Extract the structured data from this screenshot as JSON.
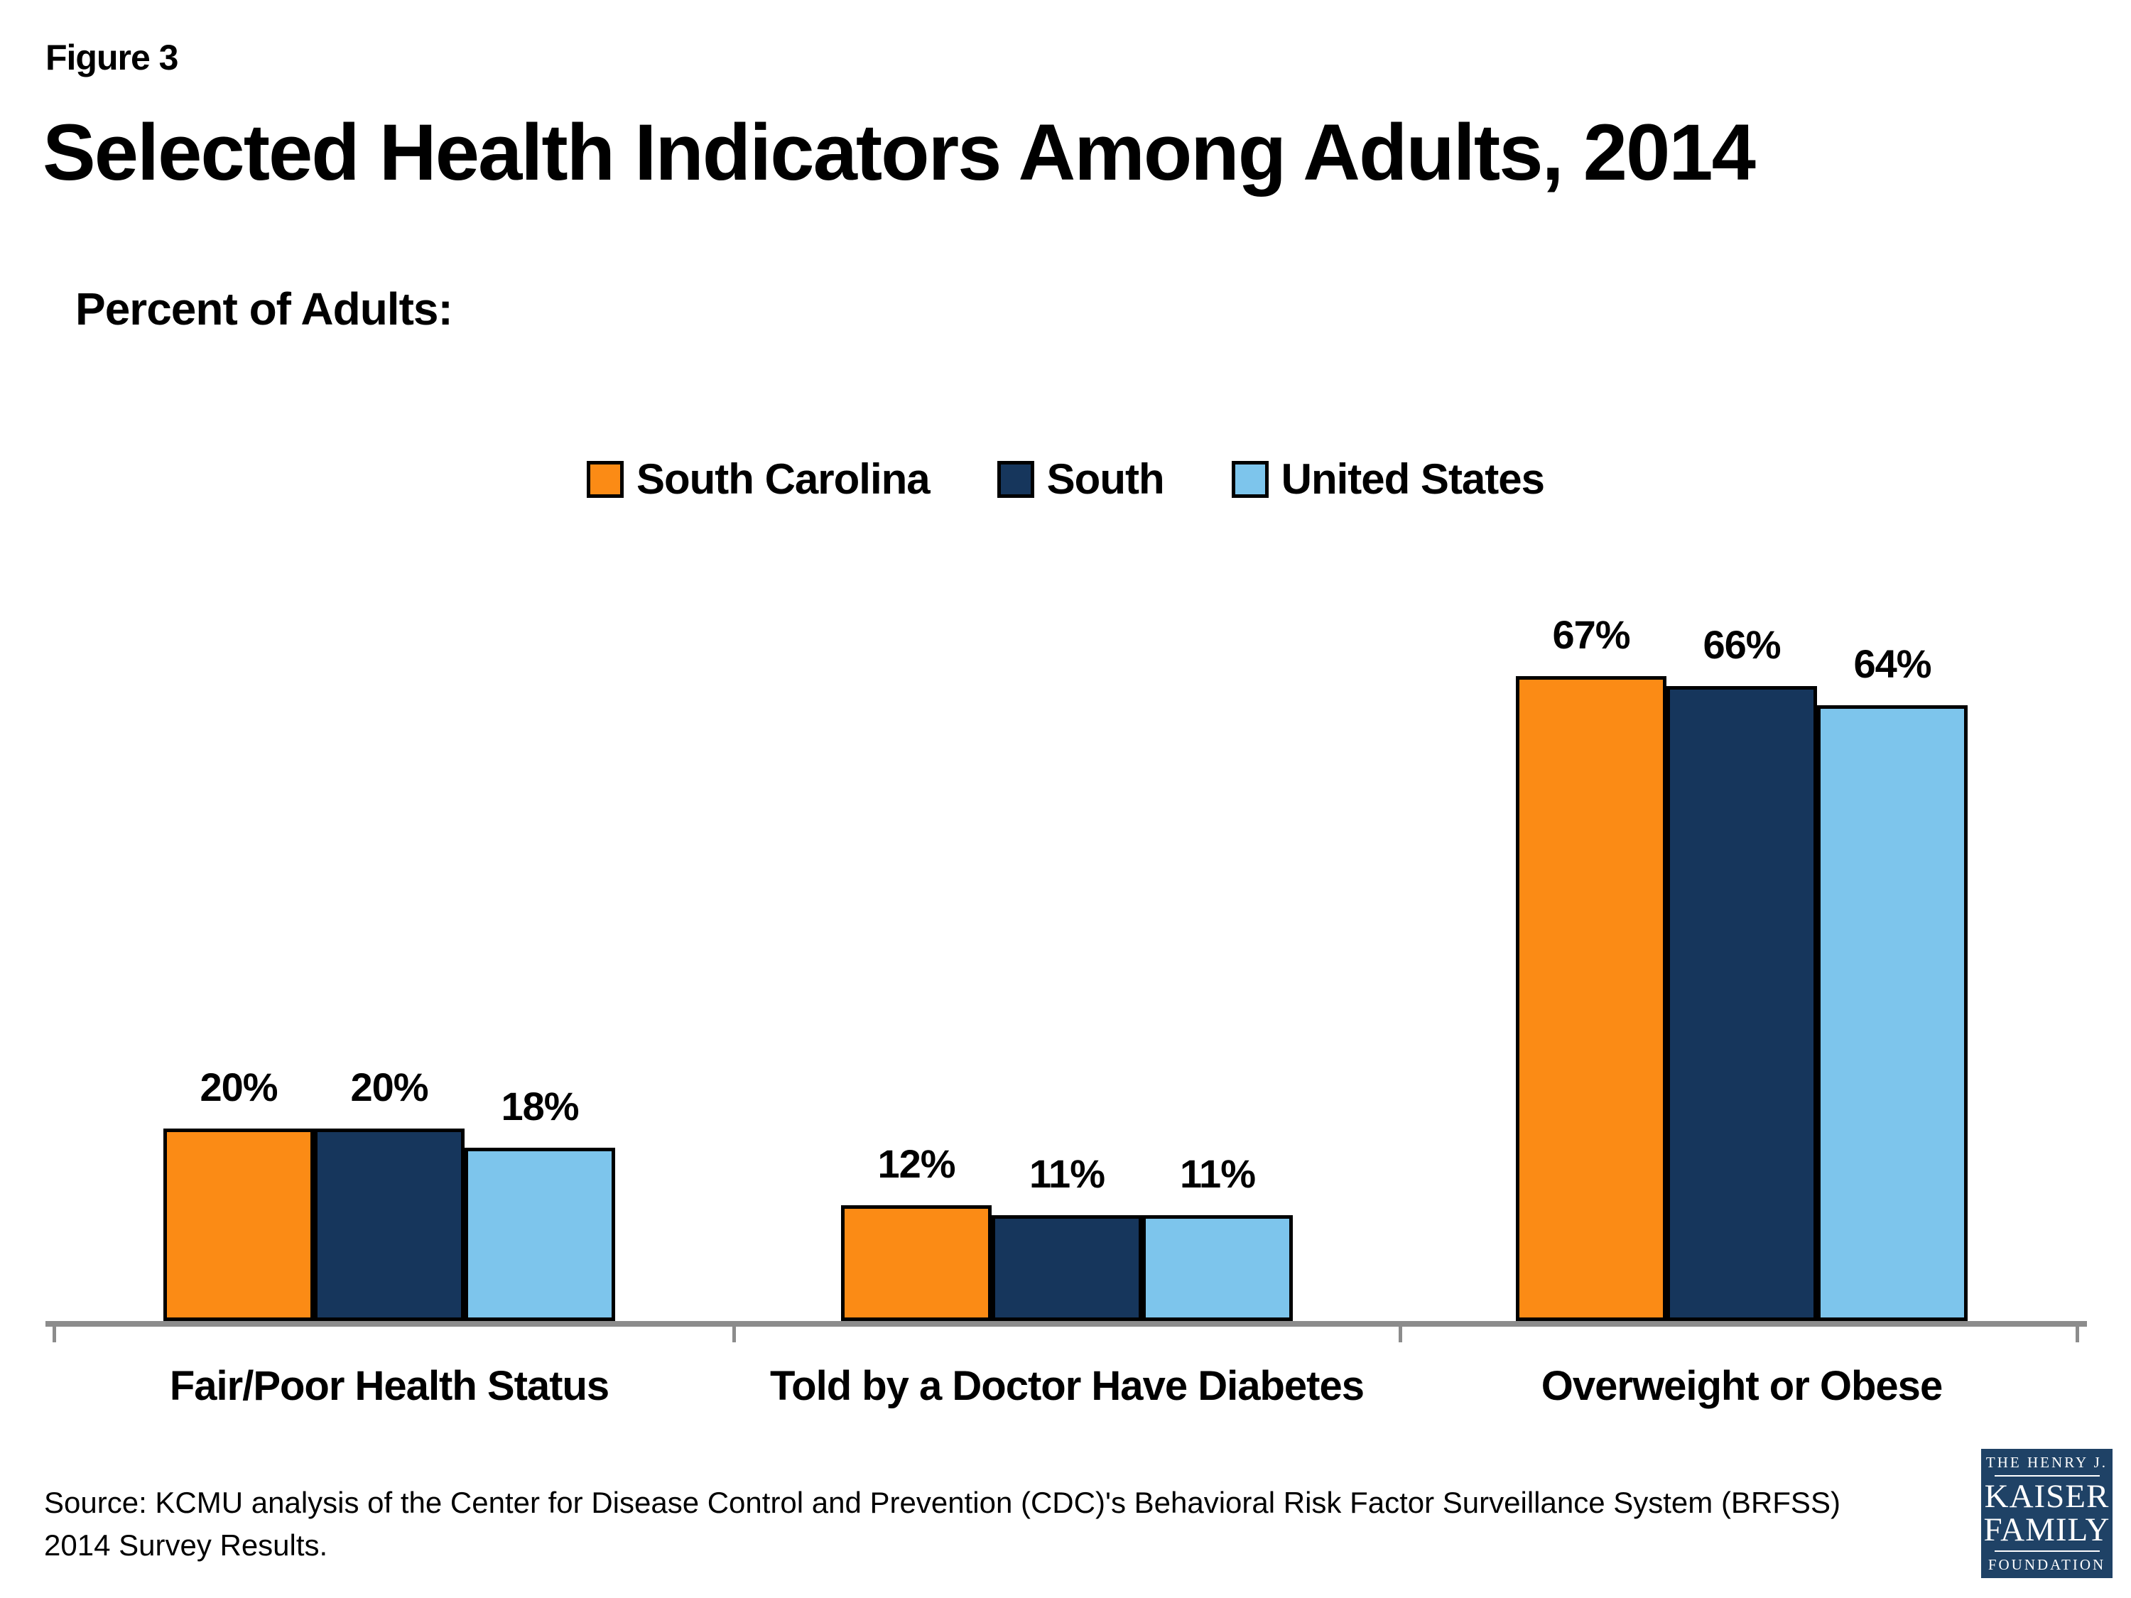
{
  "figure_label": "Figure 3",
  "title": "Selected Health Indicators Among Adults, 2014",
  "subtitle": "Percent of Adults:",
  "chart_data": {
    "type": "bar",
    "categories": [
      "Fair/Poor Health Status",
      "Told by a Doctor Have Diabetes",
      "Overweight or Obese"
    ],
    "series": [
      {
        "name": "South Carolina",
        "color": "#fb8b15",
        "values": [
          20,
          12,
          67
        ]
      },
      {
        "name": "South",
        "color": "#16365c",
        "values": [
          20,
          11,
          66
        ]
      },
      {
        "name": "United States",
        "color": "#7dc5ec",
        "values": [
          18,
          11,
          64
        ]
      }
    ],
    "unit": "%",
    "value_labels": [
      [
        "20%",
        "12%",
        "67%"
      ],
      [
        "20%",
        "11%",
        "66%"
      ],
      [
        "18%",
        "11%",
        "64%"
      ]
    ],
    "ylim": [
      0,
      80
    ],
    "grid": false,
    "legend_position": "top",
    "axis_color": "#8c8c8c",
    "bar_border_color": "#000000"
  },
  "source": {
    "line1": "Source: KCMU analysis of the Center for Disease Control and Prevention (CDC)'s Behavioral Risk Factor Surveillance System (BRFSS)",
    "line2": "2014 Survey Results."
  },
  "logo": {
    "line1": "THE HENRY J.",
    "line2": "KAISER",
    "line3": "FAMILY",
    "line4": "FOUNDATION",
    "background": "#1f4266"
  }
}
